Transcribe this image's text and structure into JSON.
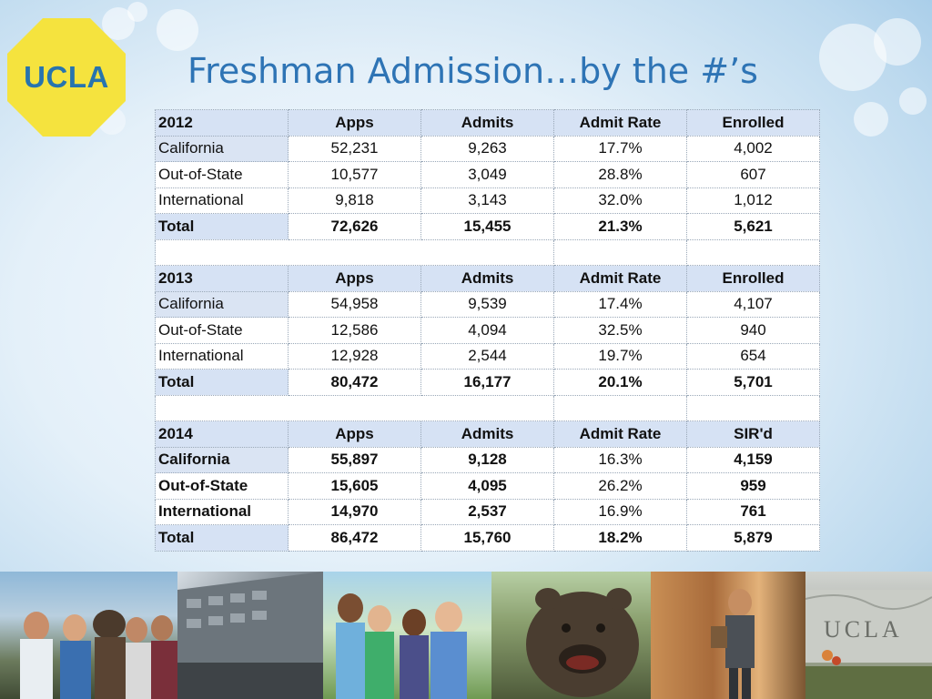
{
  "logo": {
    "text": "UCLA"
  },
  "title": "Freshman Admission…by the #’s",
  "tables": [
    {
      "header": [
        "2012",
        "Apps",
        "Admits",
        "Admit Rate",
        "Enrolled"
      ],
      "rows": [
        [
          "California",
          "52,231",
          "9,263",
          "17.7%",
          "4,002"
        ],
        [
          "Out-of-State",
          "10,577",
          "3,049",
          "28.8%",
          "607"
        ],
        [
          "International",
          "9,818",
          "3,143",
          "32.0%",
          "1,012"
        ]
      ],
      "total": [
        "Total",
        "72,626",
        "15,455",
        "21.3%",
        "5,621"
      ]
    },
    {
      "header": [
        "2013",
        "Apps",
        "Admits",
        "Admit Rate",
        "Enrolled"
      ],
      "rows": [
        [
          "California",
          "54,958",
          "9,539",
          "17.4%",
          "4,107"
        ],
        [
          "Out-of-State",
          "12,586",
          "4,094",
          "32.5%",
          "940"
        ],
        [
          "International",
          "12,928",
          "2,544",
          "19.7%",
          "654"
        ]
      ],
      "total": [
        "Total",
        "80,472",
        "16,177",
        "20.1%",
        "5,701"
      ]
    },
    {
      "header": [
        "2014",
        "Apps",
        "Admits",
        "Admit Rate",
        "SIR'd"
      ],
      "rows": [
        [
          "California",
          "55,897",
          "9,128",
          "16.3%",
          "4,159"
        ],
        [
          "Out-of-State",
          "15,605",
          "4,095",
          "26.2%",
          "959"
        ],
        [
          "International",
          "14,970",
          "2,537",
          "16.9%",
          "761"
        ]
      ],
      "total": [
        "Total",
        "86,472",
        "15,760",
        "18.2%",
        "5,879"
      ]
    }
  ],
  "photo_strip": {
    "sign_text": "UCLA"
  },
  "colors": {
    "title": "#2e74b5",
    "header_fill": "#d6e2f4",
    "logo_yellow": "#f5e33e",
    "logo_blue": "#2774ae"
  }
}
